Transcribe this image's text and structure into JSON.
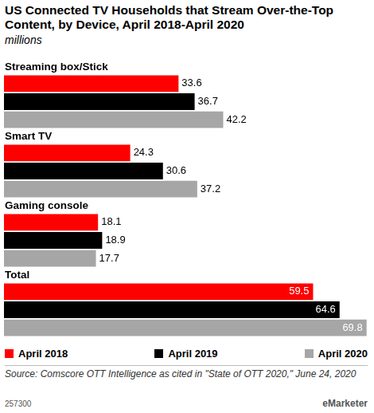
{
  "chart_data": {
    "type": "bar",
    "title": "US Connected TV Households that Stream Over-the-Top Content, by Device, April 2018-April 2020",
    "subtitle": "millions",
    "orientation": "horizontal",
    "categories": [
      "Streaming box/Stick",
      "Smart TV",
      "Gaming console",
      "Total"
    ],
    "series": [
      {
        "name": "April 2018",
        "color": "#ff0000",
        "values": [
          33.6,
          24.3,
          18.1,
          59.5
        ]
      },
      {
        "name": "April 2019",
        "color": "#000000",
        "values": [
          36.7,
          30.6,
          18.9,
          64.6
        ]
      },
      {
        "name": "April 2020",
        "color": "#a6a6a6",
        "values": [
          42.2,
          37.2,
          17.7,
          69.8
        ]
      }
    ],
    "xlim": [
      0,
      70
    ],
    "grid": false,
    "tick_labels": false,
    "data_labels": true,
    "source": "Source: Comscore OTT Intelligence as cited in \"State of OTT 2020,\" June 24, 2020",
    "annotations": [
      "257300",
      "eMarketer"
    ]
  }
}
